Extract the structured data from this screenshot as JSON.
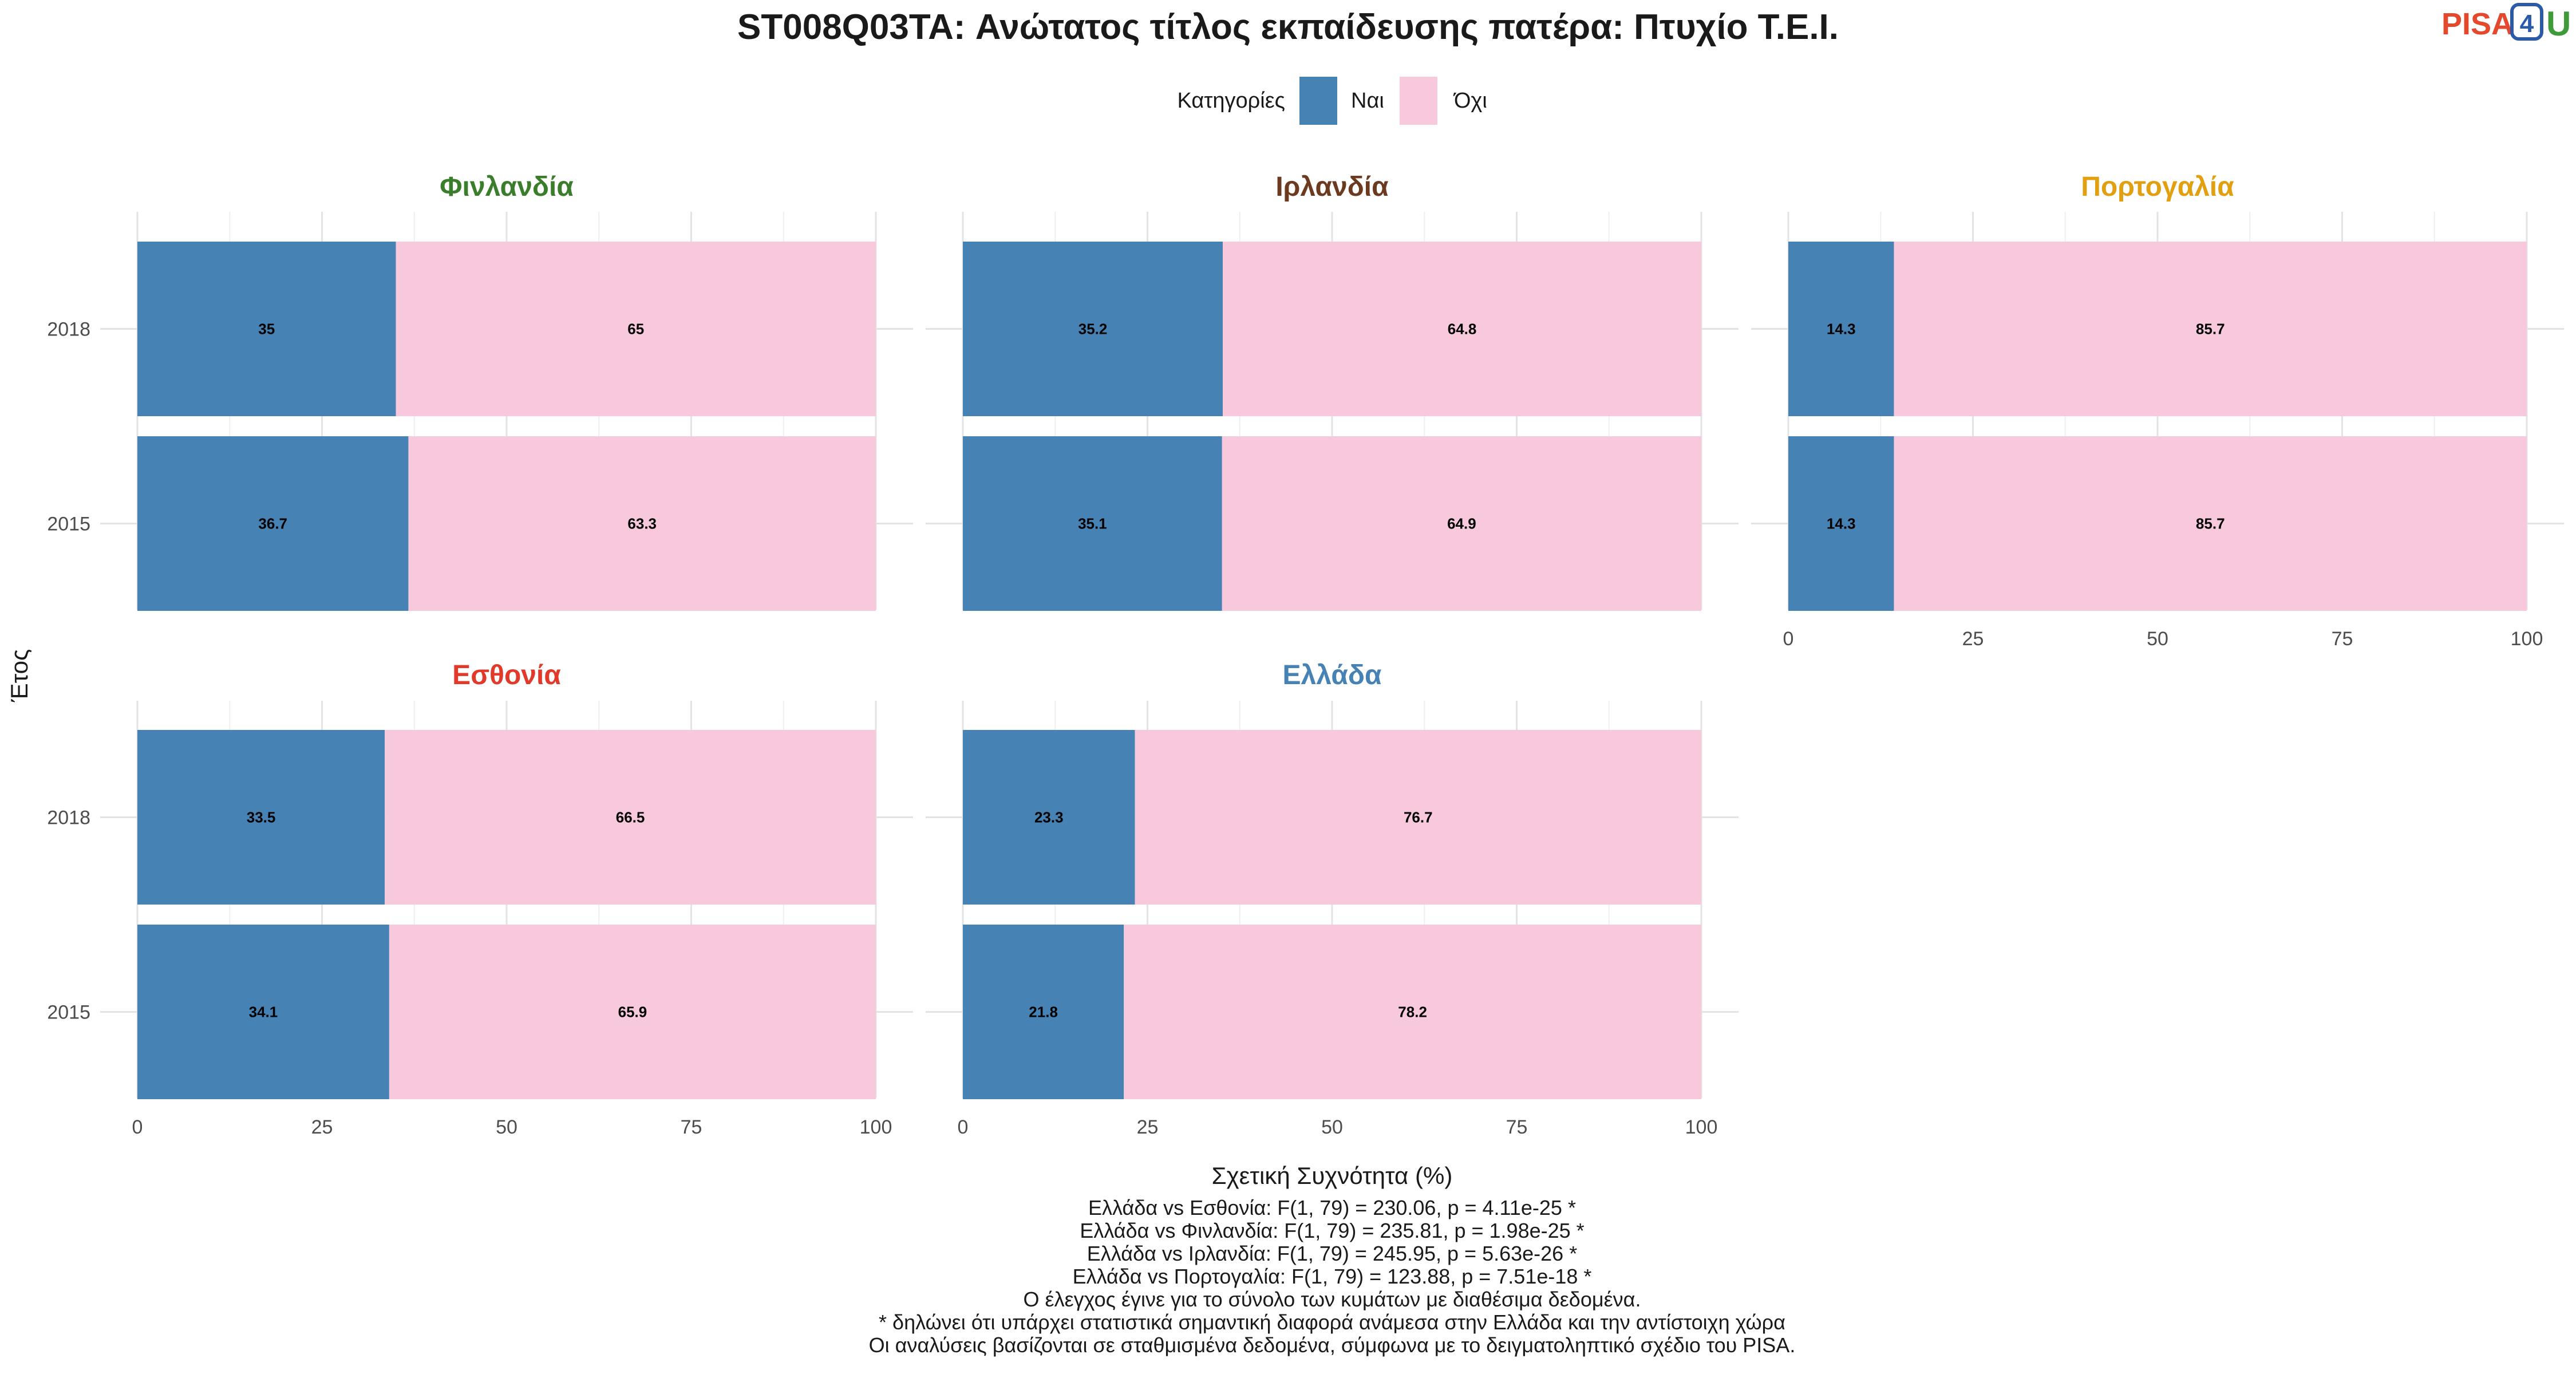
{
  "title": "ST008Q03TA: Ανώτατος τίτλος εκπαίδευσης πατέρα: Πτυχίο Τ.Ε.Ι.",
  "logo": {
    "text_a": "PISA",
    "text_b": "4",
    "text_c": "U"
  },
  "legend": {
    "title": "Κατηγορίες",
    "items": [
      {
        "label": "Ναι",
        "color": "#4682b4"
      },
      {
        "label": "Όχι",
        "color": "#f8c8dc"
      }
    ]
  },
  "chart_data": {
    "type": "bar",
    "orientation": "horizontal",
    "stacked": true,
    "xlabel": "Σχετική Συχνότητα (%)",
    "ylabel": "Έτος",
    "xlim": [
      0,
      100
    ],
    "x_ticks": [
      "0",
      "25",
      "50",
      "75",
      "100"
    ],
    "categories": [
      "2018",
      "2015"
    ],
    "series_names": [
      "Ναι",
      "Όχι"
    ],
    "grid": true,
    "legend_position": "top",
    "facets": [
      {
        "name": "Φινλανδία",
        "color": "#3a7d2a",
        "rows": [
          {
            "year": "2018",
            "values": [
              35,
              65
            ],
            "labels": [
              "35",
              "65"
            ]
          },
          {
            "year": "2015",
            "values": [
              36.7,
              63.3
            ],
            "labels": [
              "36.7",
              "63.3"
            ]
          }
        ]
      },
      {
        "name": "Ιρλανδία",
        "color": "#6b3a1f",
        "rows": [
          {
            "year": "2018",
            "values": [
              35.2,
              64.8
            ],
            "labels": [
              "35.2",
              "64.8"
            ]
          },
          {
            "year": "2015",
            "values": [
              35.1,
              64.9
            ],
            "labels": [
              "35.1",
              "64.9"
            ]
          }
        ]
      },
      {
        "name": "Πορτογαλία",
        "color": "#e2a010",
        "rows": [
          {
            "year": "2018",
            "values": [
              14.3,
              85.7
            ],
            "labels": [
              "14.3",
              "85.7"
            ]
          },
          {
            "year": "2015",
            "values": [
              14.3,
              85.7
            ],
            "labels": [
              "14.3",
              "85.7"
            ]
          }
        ]
      },
      {
        "name": "Εσθονία",
        "color": "#e23a2a",
        "rows": [
          {
            "year": "2018",
            "values": [
              33.5,
              66.5
            ],
            "labels": [
              "33.5",
              "66.5"
            ]
          },
          {
            "year": "2015",
            "values": [
              34.1,
              65.9
            ],
            "labels": [
              "34.1",
              "65.9"
            ]
          }
        ]
      },
      {
        "name": "Ελλάδα",
        "color": "#4682b4",
        "rows": [
          {
            "year": "2018",
            "values": [
              23.3,
              76.7
            ],
            "labels": [
              "23.3",
              "76.7"
            ]
          },
          {
            "year": "2015",
            "values": [
              21.8,
              78.2
            ],
            "labels": [
              "21.8",
              "78.2"
            ]
          }
        ]
      }
    ]
  },
  "caption_lines": [
    "Ελλάδα vs Εσθονία: F(1, 79) = 230.06, p = 4.11e-25 *",
    "Ελλάδα vs Φινλανδία: F(1, 79) = 235.81, p = 1.98e-25 *",
    "Ελλάδα vs Ιρλανδία: F(1, 79) = 245.95, p = 5.63e-26 *",
    "Ελλάδα vs Πορτογαλία: F(1, 79) = 123.88, p = 7.51e-18 *",
    "Ο έλεγχος έγινε για το σύνολο των κυμάτων με διαθέσιμα δεδομένα.",
    "* δηλώνει ότι υπάρχει στατιστικά σημαντική διαφορά ανάμεσα στην Ελλάδα και την αντίστοιχη χώρα",
    "Οι αναλύσεις βασίζονται σε σταθμισμένα δεδομένα, σύμφωνα με το δειγματοληπτικό σχέδιο του PISA."
  ]
}
